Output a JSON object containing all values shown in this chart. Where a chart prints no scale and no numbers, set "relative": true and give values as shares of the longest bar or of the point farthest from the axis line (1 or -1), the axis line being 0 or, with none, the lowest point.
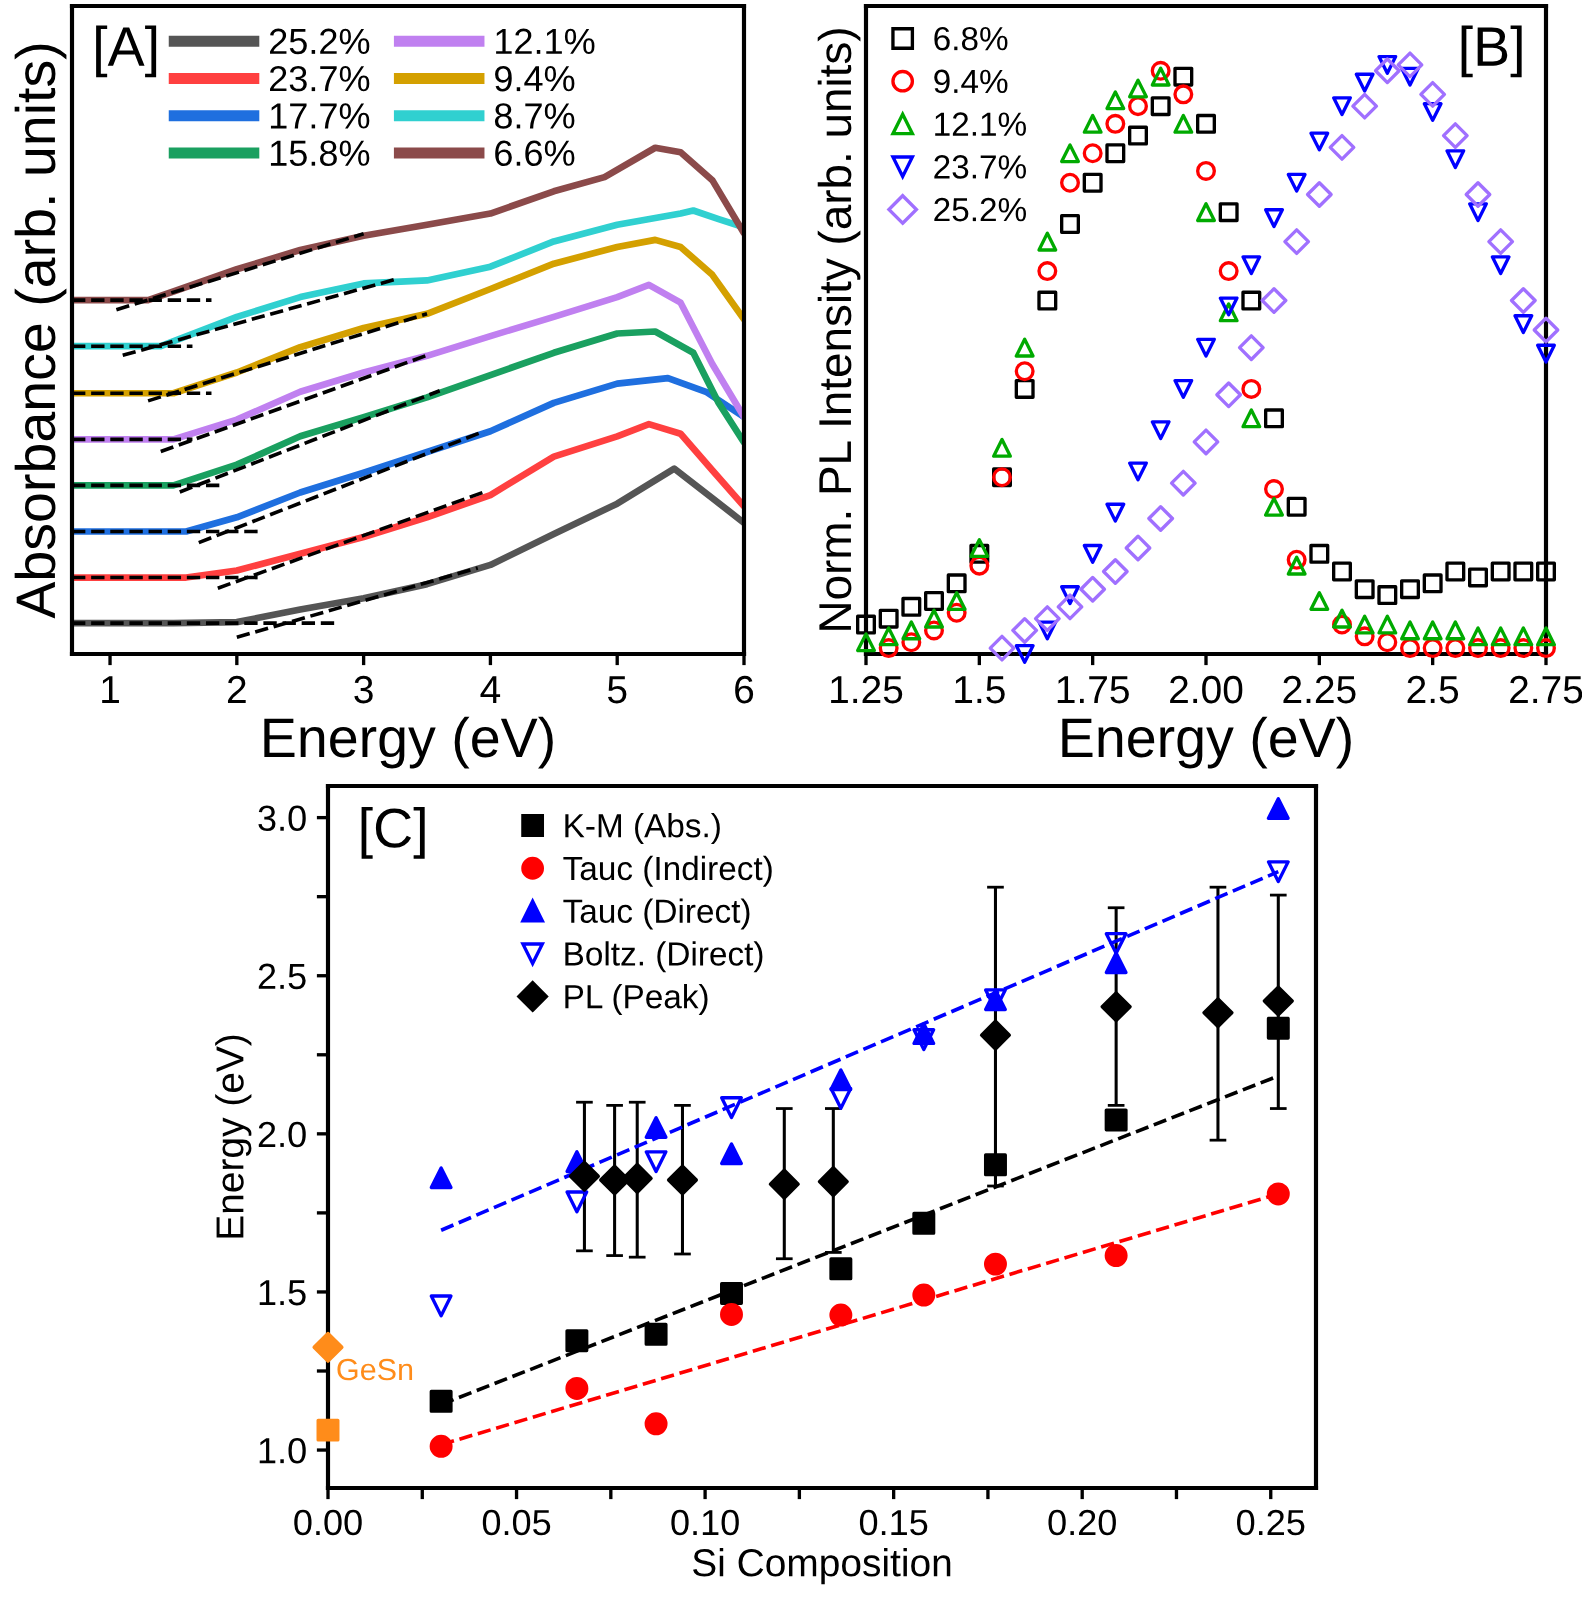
{
  "chart_data": [
    {
      "type": "line",
      "relative": true,
      "xlabel": "Energy (eV)",
      "ylabel": "Absorbance (arb. units)",
      "xlim": [
        0.7,
        6
      ],
      "xticks": [
        1,
        2,
        3,
        4,
        5,
        6
      ],
      "grid": false,
      "legend": "top left",
      "annotations": [
        "[A]"
      ],
      "series": [
        {
          "name": "25.2%",
          "color": "#555555",
          "x": [
            0.7,
            1.5,
            2.0,
            2.5,
            3,
            3.5,
            4,
            4.5,
            5,
            5.45,
            5.75,
            6
          ],
          "values": [
            0.061,
            0.061,
            0.063,
            0.088,
            0.11,
            0.138,
            0.176,
            0.237,
            0.297,
            0.366,
            0.308,
            0.259
          ]
        },
        {
          "name": "23.7%",
          "color": "#ff4040",
          "x": [
            0.7,
            1.6,
            2.0,
            2.5,
            3,
            3.5,
            4,
            4.5,
            5,
            5.25,
            5.5,
            5.75,
            6
          ],
          "values": [
            0.151,
            0.151,
            0.165,
            0.198,
            0.231,
            0.27,
            0.314,
            0.39,
            0.43,
            0.454,
            0.435,
            0.363,
            0.292
          ]
        },
        {
          "name": "17.7%",
          "color": "#1f6fdf",
          "x": [
            0.7,
            1.6,
            2.0,
            2.5,
            3,
            3.5,
            4,
            4.5,
            5,
            5.4,
            5.7,
            6
          ],
          "values": [
            0.242,
            0.242,
            0.27,
            0.319,
            0.358,
            0.399,
            0.44,
            0.496,
            0.534,
            0.545,
            0.518,
            0.468
          ]
        },
        {
          "name": "15.8%",
          "color": "#1aa060",
          "x": [
            0.7,
            1.5,
            2.0,
            2.5,
            3,
            3.5,
            4,
            4.5,
            5,
            5.3,
            5.6,
            5.8,
            6
          ],
          "values": [
            0.333,
            0.333,
            0.374,
            0.43,
            0.468,
            0.507,
            0.551,
            0.595,
            0.633,
            0.637,
            0.595,
            0.496,
            0.418
          ]
        },
        {
          "name": "12.1%",
          "color": "#c080f0",
          "x": [
            0.7,
            1.5,
            2.0,
            2.5,
            3,
            3.5,
            4,
            4.5,
            5,
            5.25,
            5.5,
            5.75,
            6
          ],
          "values": [
            0.424,
            0.424,
            0.463,
            0.518,
            0.556,
            0.589,
            0.628,
            0.666,
            0.705,
            0.729,
            0.694,
            0.573,
            0.468
          ]
        },
        {
          "name": "9.4%",
          "color": "#d4a000",
          "x": [
            0.7,
            1.5,
            2.0,
            2.5,
            3,
            3.5,
            4,
            4.5,
            5,
            5.3,
            5.5,
            5.75,
            6
          ],
          "values": [
            0.515,
            0.515,
            0.556,
            0.606,
            0.644,
            0.672,
            0.721,
            0.771,
            0.804,
            0.818,
            0.804,
            0.749,
            0.661
          ]
        },
        {
          "name": "8.7%",
          "color": "#30d0d0",
          "x": [
            0.7,
            1.4,
            2.0,
            2.5,
            3,
            3.5,
            4,
            4.5,
            5,
            5.5,
            5.6,
            5.8,
            6
          ],
          "values": [
            0.608,
            0.608,
            0.666,
            0.705,
            0.732,
            0.738,
            0.765,
            0.815,
            0.848,
            0.87,
            0.876,
            0.859,
            0.843
          ]
        },
        {
          "name": "6.6%",
          "color": "#8b4a4a",
          "x": [
            0.7,
            1.3,
            1.5,
            2.0,
            2.5,
            3,
            3.5,
            4,
            4.5,
            4.9,
            5.3,
            5.5,
            5.75,
            6
          ],
          "values": [
            0.699,
            0.699,
            0.716,
            0.76,
            0.798,
            0.826,
            0.848,
            0.87,
            0.914,
            0.942,
            1.0,
            0.991,
            0.936,
            0.831
          ]
        },
        {
          "color": "#000000",
          "line_style": "dashed",
          "x": [
            0.7,
            2.8
          ],
          "values": [
            0.061,
            0.061
          ]
        },
        {
          "color": "#000000",
          "line_style": "dashed",
          "x": [
            2.0,
            3.9
          ],
          "values": [
            0.033,
            0.17
          ]
        },
        {
          "color": "#000000",
          "line_style": "dashed",
          "x": [
            0.7,
            2.2
          ],
          "values": [
            0.151,
            0.151
          ]
        },
        {
          "color": "#000000",
          "line_style": "dashed",
          "x": [
            1.85,
            3.95
          ],
          "values": [
            0.13,
            0.32
          ]
        },
        {
          "color": "#000000",
          "line_style": "dashed",
          "x": [
            0.7,
            2.2
          ],
          "values": [
            0.242,
            0.242
          ]
        },
        {
          "color": "#000000",
          "line_style": "dashed",
          "x": [
            1.7,
            3.95
          ],
          "values": [
            0.22,
            0.44
          ]
        },
        {
          "color": "#000000",
          "line_style": "dashed",
          "x": [
            0.7,
            1.9
          ],
          "values": [
            0.333,
            0.333
          ]
        },
        {
          "color": "#000000",
          "line_style": "dashed",
          "x": [
            1.55,
            3.6
          ],
          "values": [
            0.32,
            0.52
          ]
        },
        {
          "color": "#000000",
          "line_style": "dashed",
          "x": [
            0.7,
            1.65
          ],
          "values": [
            0.424,
            0.424
          ]
        },
        {
          "color": "#000000",
          "line_style": "dashed",
          "x": [
            1.4,
            3.5
          ],
          "values": [
            0.4,
            0.59
          ]
        },
        {
          "color": "#000000",
          "line_style": "dashed",
          "x": [
            0.7,
            1.8
          ],
          "values": [
            0.515,
            0.515
          ]
        },
        {
          "color": "#000000",
          "line_style": "dashed",
          "x": [
            1.3,
            3.5
          ],
          "values": [
            0.5,
            0.672
          ]
        },
        {
          "color": "#000000",
          "line_style": "dashed",
          "x": [
            0.7,
            1.65
          ],
          "values": [
            0.608,
            0.608
          ]
        },
        {
          "color": "#000000",
          "line_style": "dashed",
          "x": [
            1.1,
            3.25
          ],
          "values": [
            0.59,
            0.74
          ]
        },
        {
          "color": "#000000",
          "line_style": "dashed",
          "x": [
            0.7,
            1.8
          ],
          "values": [
            0.699,
            0.699
          ]
        },
        {
          "color": "#000000",
          "line_style": "dashed",
          "x": [
            1.05,
            3.0
          ],
          "values": [
            0.68,
            0.83
          ]
        }
      ]
    },
    {
      "type": "scatter",
      "relative": true,
      "xlabel": "Energy (eV)",
      "ylabel": "Norm. PL Intensity (arb. units)",
      "xlim": [
        1.25,
        2.75
      ],
      "xticks": [
        1.25,
        1.5,
        1.75,
        "2.00",
        2.25,
        2.5,
        2.75
      ],
      "grid": false,
      "legend": "top left",
      "annotations": [
        "[B]"
      ],
      "x": [
        1.25,
        1.3,
        1.35,
        1.4,
        1.45,
        1.5,
        1.55,
        1.6,
        1.65,
        1.7,
        1.75,
        1.8,
        1.85,
        1.9,
        1.95,
        2.0,
        2.05,
        2.1,
        2.15,
        2.2,
        2.25,
        2.3,
        2.35,
        2.4,
        2.45,
        2.5,
        2.55,
        2.6,
        2.65,
        2.7,
        2.75
      ],
      "series": [
        {
          "name": "6.8%",
          "color": "#000000",
          "marker": "square-open",
          "values": [
            0.05,
            0.06,
            0.08,
            0.09,
            0.12,
            0.17,
            0.3,
            0.45,
            0.6,
            0.73,
            0.8,
            0.85,
            0.88,
            0.93,
            0.98,
            0.9,
            0.75,
            0.6,
            0.4,
            0.25,
            0.17,
            0.14,
            0.11,
            0.1,
            0.11,
            0.12,
            0.14,
            0.13,
            0.14,
            0.14,
            0.14
          ]
        },
        {
          "name": "9.4%",
          "color": "#ff0000",
          "marker": "circle-open",
          "values": [
            null,
            0.01,
            0.02,
            0.04,
            0.07,
            0.15,
            0.3,
            0.48,
            0.65,
            0.8,
            0.85,
            0.9,
            0.93,
            0.99,
            0.95,
            0.82,
            0.65,
            0.45,
            0.28,
            0.16,
            null,
            0.05,
            0.03,
            0.02,
            0.01,
            0.01,
            0.01,
            0.01,
            0.01,
            0.01,
            0.01
          ]
        },
        {
          "name": "12.1%",
          "color": "#00aa00",
          "marker": "triangle-open",
          "values": [
            0.02,
            0.03,
            0.04,
            0.06,
            0.09,
            0.18,
            0.35,
            0.52,
            0.7,
            0.85,
            0.9,
            0.94,
            0.96,
            0.98,
            0.9,
            0.75,
            0.58,
            0.4,
            0.25,
            0.15,
            0.09,
            0.06,
            0.05,
            0.05,
            0.04,
            0.04,
            0.04,
            0.03,
            0.03,
            0.03,
            0.03
          ]
        },
        {
          "name": "23.7%",
          "color": "#0000ff",
          "marker": "triangle_down-open",
          "values": [
            null,
            null,
            null,
            null,
            null,
            null,
            null,
            0.0,
            0.04,
            0.1,
            0.17,
            0.24,
            0.31,
            0.38,
            0.45,
            0.52,
            0.59,
            0.66,
            0.74,
            0.8,
            0.87,
            0.93,
            0.97,
            1.0,
            0.98,
            0.92,
            0.84,
            0.75,
            0.66,
            0.56,
            0.51
          ]
        },
        {
          "name": "25.2%",
          "color": "#a070ff",
          "marker": "diamond-open",
          "values": [
            null,
            null,
            null,
            null,
            null,
            null,
            0.01,
            0.04,
            0.06,
            0.08,
            0.11,
            0.14,
            0.18,
            0.23,
            0.29,
            0.36,
            0.44,
            0.52,
            0.6,
            0.7,
            0.78,
            0.86,
            0.93,
            0.99,
            1.0,
            0.95,
            0.88,
            0.78,
            0.7,
            0.6,
            0.55
          ]
        }
      ]
    },
    {
      "type": "scatter",
      "xlabel": "Si Composition",
      "ylabel": "Energy (eV)",
      "xlim": [
        0,
        0.262
      ],
      "ylim": [
        0.88,
        3.1
      ],
      "xticks": [
        "0.00",
        {
          "value": 0.025,
          "label": null
        },
        0.05,
        {
          "value": 0.075,
          "label": null
        },
        "0.10",
        {
          "value": 0.125,
          "label": null
        },
        0.15,
        {
          "value": 0.175,
          "label": null
        },
        "0.20",
        {
          "value": 0.225,
          "label": null
        },
        0.25
      ],
      "yticks": [
        "1.0",
        {
          "value": 1.25,
          "label": null
        },
        1.5,
        {
          "value": 1.75,
          "label": null
        },
        "2.0",
        {
          "value": 2.25,
          "label": null
        },
        2.5,
        {
          "value": 2.75,
          "label": null
        },
        "3.0"
      ],
      "grid": false,
      "legend": "top left",
      "annotations": [
        "[C]",
        "GeSn"
      ],
      "series": [
        {
          "name": "K-M (Abs.)",
          "color": "#000000",
          "marker": "square",
          "x": [
            0.03,
            0.066,
            0.087,
            0.107,
            0.136,
            0.158,
            0.177,
            0.209,
            0.252
          ],
          "values": [
            1.154,
            1.346,
            1.366,
            1.495,
            1.573,
            1.717,
            1.902,
            2.044,
            2.334
          ]
        },
        {
          "name": "Tauc (Indirect)",
          "color": "#ff0000",
          "marker": "circle",
          "x": [
            0.03,
            0.066,
            0.087,
            0.107,
            0.136,
            0.158,
            0.177,
            0.209,
            0.252
          ],
          "values": [
            1.012,
            1.195,
            1.083,
            1.429,
            1.427,
            1.49,
            1.588,
            1.615,
            1.81
          ]
        },
        {
          "name": "Tauc (Direct)",
          "color": "#0000ff",
          "marker": "triangle",
          "x": [
            0.03,
            0.066,
            0.087,
            0.107,
            0.136,
            0.158,
            0.177,
            0.209,
            0.252
          ],
          "values": [
            1.861,
            1.912,
            2.02,
            1.937,
            2.171,
            2.317,
            2.424,
            2.541,
            3.029
          ]
        },
        {
          "name": "Boltz. (Direct)",
          "color": "#0000ff",
          "marker": "triangle_down-open",
          "x": [
            0.03,
            0.066,
            0.087,
            0.107,
            0.136,
            0.158,
            0.177,
            0.209,
            0.252
          ],
          "values": [
            1.456,
            1.785,
            1.912,
            2.083,
            2.112,
            2.298,
            2.424,
            2.602,
            2.829
          ]
        },
        {
          "name": "PL (Peak)",
          "color": "#000000",
          "marker": "diamond",
          "x": [
            0.068,
            0.076,
            0.082,
            0.094,
            0.121,
            0.134,
            0.177,
            0.209,
            0.236,
            0.252
          ],
          "values": [
            1.866,
            1.854,
            1.859,
            1.854,
            1.841,
            1.849,
            2.312,
            2.402,
            2.383,
            2.42
          ],
          "errors": [
            [
              1.63,
              2.1
            ],
            [
              1.615,
              2.09
            ],
            [
              1.61,
              2.1
            ],
            [
              1.62,
              2.09
            ],
            [
              1.605,
              2.08
            ],
            [
              1.625,
              2.08
            ],
            [
              1.835,
              2.78
            ],
            [
              2.09,
              2.715
            ],
            [
              1.98,
              2.78
            ],
            [
              2.08,
              2.755
            ]
          ]
        },
        {
          "color": "#ff8c1a",
          "marker": "diamond",
          "x": [
            0
          ],
          "values": [
            1.325
          ]
        },
        {
          "color": "#ff8c1a",
          "marker": "square",
          "x": [
            0
          ],
          "values": [
            1.063
          ]
        },
        {
          "type": "line",
          "color": "#0000ff",
          "line_style": "dashed",
          "marker": "none",
          "x": [
            0.03,
            0.252
          ],
          "values": [
            1.695,
            2.829
          ]
        },
        {
          "type": "line",
          "color": "#000000",
          "line_style": "dashed",
          "marker": "none",
          "x": [
            0.03,
            0.252
          ],
          "values": [
            1.144,
            2.183
          ]
        },
        {
          "type": "line",
          "color": "#ff0000",
          "line_style": "dashed",
          "marker": "none",
          "x": [
            0.03,
            0.252
          ],
          "values": [
            1.017,
            1.81
          ]
        }
      ]
    }
  ]
}
